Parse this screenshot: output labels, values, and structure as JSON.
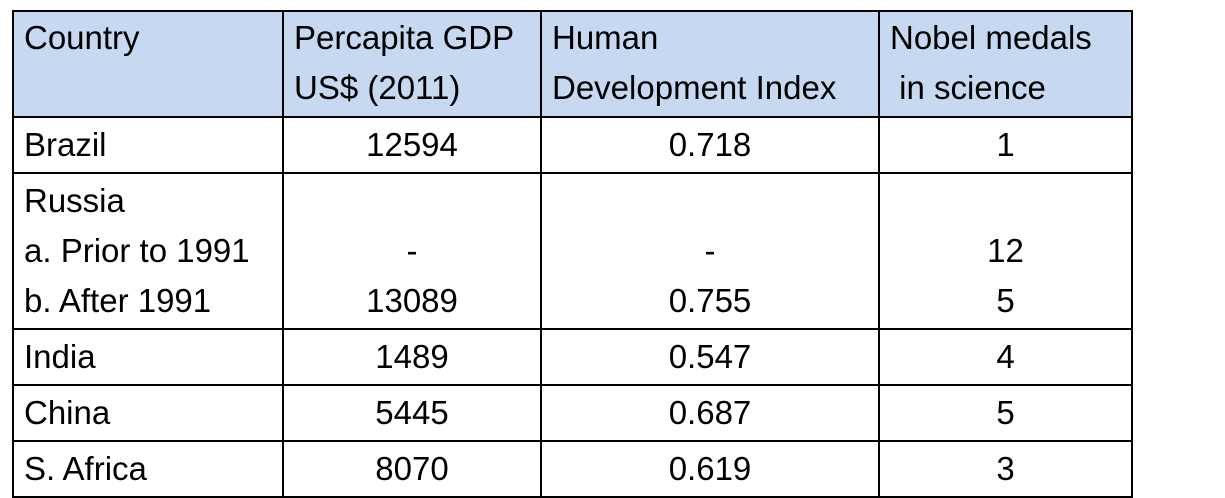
{
  "table": {
    "headers": [
      [
        "Country"
      ],
      [
        "Percapita GDP",
        "US$ (2011)"
      ],
      [
        "Human",
        "Development Index"
      ],
      [
        "Nobel medals",
        " in science"
      ]
    ],
    "rows": [
      {
        "country": [
          "Brazil"
        ],
        "gdp": [
          "12594"
        ],
        "hdi": [
          "0.718"
        ],
        "nobel": [
          "1"
        ]
      },
      {
        "country": [
          "Russia",
          "a. Prior to 1991",
          "b. After 1991"
        ],
        "gdp": [
          "",
          "-",
          "13089"
        ],
        "hdi": [
          "",
          "-",
          "0.755"
        ],
        "nobel": [
          "",
          "12",
          "5"
        ]
      },
      {
        "country": [
          "India"
        ],
        "gdp": [
          "1489"
        ],
        "hdi": [
          "0.547"
        ],
        "nobel": [
          "4"
        ]
      },
      {
        "country": [
          "China"
        ],
        "gdp": [
          "5445"
        ],
        "hdi": [
          "0.687"
        ],
        "nobel": [
          "5"
        ]
      },
      {
        "country": [
          "S. Africa"
        ],
        "gdp": [
          "8070"
        ],
        "hdi": [
          "0.619"
        ],
        "nobel": [
          "3"
        ]
      }
    ]
  },
  "colors": {
    "header_bg": "#c6d9f1",
    "border": "#000000"
  }
}
